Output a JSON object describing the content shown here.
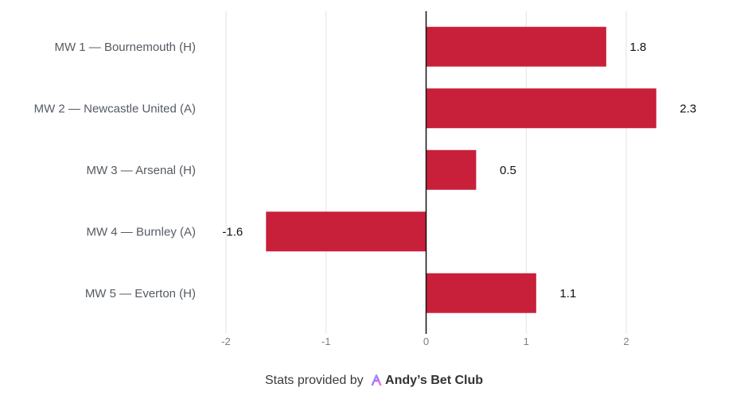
{
  "chart_data": {
    "type": "bar",
    "orientation": "horizontal",
    "categories": [
      "MW 1 — Bournemouth (H)",
      "MW 2 — Newcastle United (A)",
      "MW 3 — Arsenal (H)",
      "MW 4 — Burnley (A)",
      "MW 5 — Everton (H)"
    ],
    "values": [
      1.8,
      2.3,
      0.5,
      -1.6,
      1.1
    ],
    "data_labels": [
      "1.8",
      "2.3",
      "0.5",
      "-1.6",
      "1.1"
    ],
    "xlim": [
      -2,
      2.3
    ],
    "x_ticks": [
      "-2",
      "-1",
      "0",
      "1",
      "2"
    ],
    "title": "",
    "xlabel": "",
    "ylabel": "",
    "grid": "vertical",
    "legend": "none",
    "bar_color": "#c8203a",
    "zero_line_color": "#111111"
  },
  "credit": {
    "prefix": "Stats provided by",
    "brand": "Andy’s Bet Club",
    "logo_icon": "abc-logo-icon"
  }
}
